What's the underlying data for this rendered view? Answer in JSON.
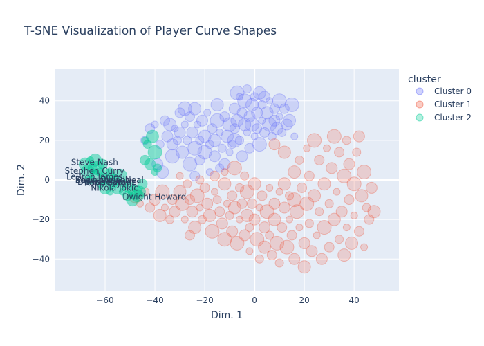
{
  "chart_data": {
    "type": "scatter",
    "title": "T-SNE Visualization of Player Curve Shapes",
    "xlabel": "Dim. 1",
    "ylabel": "Dim. 2",
    "xlim": [
      -80,
      58
    ],
    "ylim": [
      -56,
      56
    ],
    "xticks": [
      -60,
      -40,
      -20,
      0,
      20,
      40
    ],
    "yticks": [
      -40,
      -20,
      0,
      20,
      40
    ],
    "legend_title": "cluster",
    "legend_position": "right",
    "grid": true,
    "background": "#e5ecf6",
    "series": [
      {
        "name": "Cluster 0",
        "color": "#636efa",
        "note_region": "upper-middle",
        "points": [
          [
            -40,
            28
          ],
          [
            -38,
            18
          ],
          [
            -36,
            30
          ],
          [
            -35,
            22
          ],
          [
            -34,
            28
          ],
          [
            -33,
            12
          ],
          [
            -32,
            26
          ],
          [
            -31,
            20
          ],
          [
            -30,
            34
          ],
          [
            -30,
            24
          ],
          [
            -29,
            14
          ],
          [
            -28,
            36
          ],
          [
            -28,
            28
          ],
          [
            -27,
            20
          ],
          [
            -26,
            32
          ],
          [
            -25,
            24
          ],
          [
            -24,
            36
          ],
          [
            -24,
            16
          ],
          [
            -23,
            28
          ],
          [
            -22,
            20
          ],
          [
            -22,
            10
          ],
          [
            -21,
            30
          ],
          [
            -20,
            22
          ],
          [
            -20,
            14
          ],
          [
            -19,
            34
          ],
          [
            -18,
            18
          ],
          [
            -17,
            26
          ],
          [
            -16,
            12
          ],
          [
            -16,
            20
          ],
          [
            -15,
            30
          ],
          [
            -14,
            24
          ],
          [
            -13,
            16
          ],
          [
            -12,
            32
          ],
          [
            -12,
            8
          ],
          [
            -11,
            22
          ],
          [
            -10,
            28
          ],
          [
            -10,
            14
          ],
          [
            -9,
            18
          ],
          [
            -8,
            26
          ],
          [
            -8,
            36
          ],
          [
            -7,
            30
          ],
          [
            -7,
            44
          ],
          [
            -6,
            42
          ],
          [
            -6,
            20
          ],
          [
            -5,
            34
          ],
          [
            -5,
            12
          ],
          [
            -4,
            28
          ],
          [
            -4,
            40
          ],
          [
            -3,
            24
          ],
          [
            -3,
            46
          ],
          [
            -2,
            16
          ],
          [
            -2,
            32
          ],
          [
            -1,
            38
          ],
          [
            -1,
            28
          ],
          [
            0,
            22
          ],
          [
            0,
            42
          ],
          [
            1,
            26
          ],
          [
            1,
            34
          ],
          [
            2,
            44
          ],
          [
            2,
            18
          ],
          [
            3,
            30
          ],
          [
            3,
            38
          ],
          [
            4,
            24
          ],
          [
            4,
            42
          ],
          [
            5,
            34
          ],
          [
            6,
            28
          ],
          [
            6,
            40
          ],
          [
            7,
            22
          ],
          [
            8,
            36
          ],
          [
            8,
            30
          ],
          [
            9,
            26
          ],
          [
            10,
            40
          ],
          [
            10,
            32
          ],
          [
            11,
            24
          ],
          [
            12,
            36
          ],
          [
            13,
            28
          ],
          [
            14,
            30
          ],
          [
            15,
            38
          ],
          [
            16,
            22
          ],
          [
            -44,
            20
          ],
          [
            -42,
            26
          ],
          [
            -39,
            8
          ],
          [
            -37,
            4
          ],
          [
            -26,
            8
          ],
          [
            -18,
            4
          ],
          [
            -14,
            6
          ],
          [
            -24,
            2
          ],
          [
            -33,
            18
          ],
          [
            -15,
            38
          ],
          [
            -8,
            20
          ]
        ]
      },
      {
        "name": "Cluster 1",
        "color": "#ef553b",
        "note_region": "lower-middle-right",
        "points": [
          [
            -48,
            -8
          ],
          [
            -46,
            -12
          ],
          [
            -44,
            -6
          ],
          [
            -42,
            -14
          ],
          [
            -40,
            -10
          ],
          [
            -38,
            -18
          ],
          [
            -37,
            -6
          ],
          [
            -36,
            -14
          ],
          [
            -34,
            -20
          ],
          [
            -33,
            -10
          ],
          [
            -32,
            -16
          ],
          [
            -30,
            -6
          ],
          [
            -29,
            -12
          ],
          [
            -28,
            -20
          ],
          [
            -27,
            -2
          ],
          [
            -26,
            -10
          ],
          [
            -25,
            -16
          ],
          [
            -24,
            -24
          ],
          [
            -23,
            -8
          ],
          [
            -22,
            -14
          ],
          [
            -21,
            -20
          ],
          [
            -20,
            -4
          ],
          [
            -19,
            -12
          ],
          [
            -18,
            -18
          ],
          [
            -17,
            -26
          ],
          [
            -16,
            -6
          ],
          [
            -15,
            -10
          ],
          [
            -14,
            -16
          ],
          [
            -13,
            -22
          ],
          [
            -12,
            -2
          ],
          [
            -12,
            -30
          ],
          [
            -11,
            -12
          ],
          [
            -10,
            -18
          ],
          [
            -9,
            -8
          ],
          [
            -9,
            -26
          ],
          [
            -8,
            -14
          ],
          [
            -7,
            -32
          ],
          [
            -6,
            -20
          ],
          [
            -6,
            -4
          ],
          [
            -5,
            -12
          ],
          [
            -4,
            -28
          ],
          [
            -3,
            -18
          ],
          [
            -3,
            -6
          ],
          [
            -2,
            -36
          ],
          [
            -2,
            -24
          ],
          [
            -1,
            -12
          ],
          [
            0,
            -20
          ],
          [
            0,
            -2
          ],
          [
            1,
            -30
          ],
          [
            2,
            -14
          ],
          [
            2,
            -40
          ],
          [
            3,
            -8
          ],
          [
            4,
            -24
          ],
          [
            4,
            -34
          ],
          [
            5,
            -16
          ],
          [
            6,
            -4
          ],
          [
            6,
            -28
          ],
          [
            7,
            -38
          ],
          [
            8,
            -12
          ],
          [
            8,
            -20
          ],
          [
            9,
            -32
          ],
          [
            10,
            -6
          ],
          [
            10,
            -42
          ],
          [
            11,
            -24
          ],
          [
            12,
            -14
          ],
          [
            12,
            -2
          ],
          [
            13,
            -34
          ],
          [
            14,
            -20
          ],
          [
            14,
            -8
          ],
          [
            15,
            -28
          ],
          [
            16,
            -40
          ],
          [
            16,
            4
          ],
          [
            17,
            -16
          ],
          [
            18,
            -24
          ],
          [
            18,
            10
          ],
          [
            19,
            -4
          ],
          [
            20,
            -32
          ],
          [
            20,
            -44
          ],
          [
            21,
            -12
          ],
          [
            21,
            16
          ],
          [
            22,
            -22
          ],
          [
            22,
            2
          ],
          [
            23,
            -36
          ],
          [
            24,
            -8
          ],
          [
            24,
            20
          ],
          [
            25,
            -28
          ],
          [
            26,
            -16
          ],
          [
            26,
            10
          ],
          [
            27,
            -40
          ],
          [
            28,
            -2
          ],
          [
            28,
            -24
          ],
          [
            29,
            16
          ],
          [
            30,
            -12
          ],
          [
            30,
            -34
          ],
          [
            31,
            6
          ],
          [
            32,
            -20
          ],
          [
            32,
            22
          ],
          [
            33,
            -6
          ],
          [
            34,
            -30
          ],
          [
            34,
            14
          ],
          [
            35,
            -16
          ],
          [
            36,
            -38
          ],
          [
            36,
            2
          ],
          [
            37,
            -24
          ],
          [
            37,
            20
          ],
          [
            38,
            -10
          ],
          [
            38,
            8
          ],
          [
            39,
            -32
          ],
          [
            40,
            -2
          ],
          [
            40,
            -18
          ],
          [
            41,
            14
          ],
          [
            42,
            -26
          ],
          [
            42,
            22
          ],
          [
            43,
            -8
          ],
          [
            44,
            4
          ],
          [
            44,
            -34
          ],
          [
            45,
            -14
          ],
          [
            46,
            -20
          ],
          [
            47,
            -4
          ],
          [
            48,
            -16
          ],
          [
            -8,
            6
          ],
          [
            -12,
            4
          ],
          [
            -4,
            2
          ],
          [
            -16,
            2
          ],
          [
            8,
            18
          ],
          [
            12,
            14
          ],
          [
            16,
            -10
          ],
          [
            -30,
            2
          ],
          [
            -22,
            0
          ],
          [
            -26,
            -28
          ]
        ]
      },
      {
        "name": "Cluster 2",
        "color": "#00cc96",
        "note_region": "left",
        "points": [
          [
            -68,
            8
          ],
          [
            -67,
            4
          ],
          [
            -66,
            10
          ],
          [
            -66,
            0
          ],
          [
            -65,
            6
          ],
          [
            -64,
            2
          ],
          [
            -64,
            10
          ],
          [
            -63,
            6
          ],
          [
            -62,
            -2
          ],
          [
            -62,
            4
          ],
          [
            -61,
            8
          ],
          [
            -60,
            0
          ],
          [
            -60,
            -4
          ],
          [
            -59,
            2
          ],
          [
            -58,
            -6
          ],
          [
            -58,
            4
          ],
          [
            -57,
            -2
          ],
          [
            -56,
            0
          ],
          [
            -55,
            -4
          ],
          [
            -54,
            2
          ],
          [
            -53,
            -6
          ],
          [
            -52,
            -2
          ],
          [
            -51,
            -8
          ],
          [
            -50,
            -4
          ],
          [
            -49,
            -10
          ],
          [
            -48,
            -6
          ],
          [
            -44,
            20
          ],
          [
            -43,
            18
          ],
          [
            -44,
            10
          ],
          [
            -42,
            8
          ],
          [
            -41,
            22
          ],
          [
            -40,
            14
          ],
          [
            -40,
            4
          ],
          [
            -39,
            6
          ],
          [
            -45,
            -2
          ],
          [
            -46,
            -6
          ],
          [
            -47,
            -8
          ]
        ]
      }
    ],
    "annotations": [
      {
        "text": "Steve Nash",
        "x": -67,
        "y": 9
      },
      {
        "text": "Stephen Curry",
        "x": -67,
        "y": 4.5
      },
      {
        "text": "LeBron James",
        "x": -67,
        "y": 1.5
      },
      {
        "text": "Kevin Durant",
        "x": -64,
        "y": 0
      },
      {
        "text": "Shaquille O'Neal",
        "x": -61,
        "y": 0
      },
      {
        "text": "Chris Paul",
        "x": -63,
        "y": -1
      },
      {
        "text": "Dwyane Wade",
        "x": -62,
        "y": -1
      },
      {
        "text": "Kobe Bryant",
        "x": -61,
        "y": -1.5
      },
      {
        "text": "Nikola Jokic",
        "x": -59,
        "y": -4
      },
      {
        "text": "Dwight Howard",
        "x": -43,
        "y": -8.5
      }
    ]
  }
}
